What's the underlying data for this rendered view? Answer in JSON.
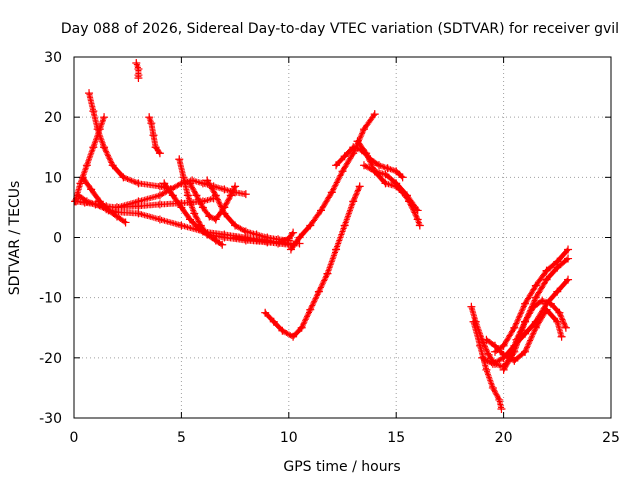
{
  "chart_data": {
    "type": "scatter",
    "title": "Day 088 of 2026, Sidereal Day-to-day VTEC variation (SDTVAR) for receiver gvil",
    "xlabel": "GPS time / hours",
    "ylabel": "SDTVAR / TECUs",
    "xlim": [
      0,
      25
    ],
    "ylim": [
      -30,
      30
    ],
    "xticks": [
      0,
      5,
      10,
      15,
      20,
      25
    ],
    "yticks": [
      -30,
      -20,
      -10,
      0,
      10,
      20,
      30
    ],
    "grid": true,
    "marker": "+",
    "color": "#ff0000",
    "series": [
      {
        "points": [
          [
            0.05,
            6
          ],
          [
            0.3,
            9
          ],
          [
            0.6,
            12
          ],
          [
            0.9,
            15
          ],
          [
            1.2,
            18
          ],
          [
            1.4,
            20
          ]
        ]
      },
      {
        "points": [
          [
            0.7,
            24
          ],
          [
            0.9,
            21
          ],
          [
            1.1,
            18
          ],
          [
            1.4,
            15
          ],
          [
            1.8,
            12
          ],
          [
            2.3,
            10
          ],
          [
            3,
            9
          ],
          [
            4,
            8.5
          ],
          [
            4.5,
            8
          ]
        ]
      },
      {
        "points": [
          [
            2.9,
            29
          ],
          [
            3.0,
            28
          ],
          [
            3.0,
            27
          ],
          [
            3.0,
            26.5
          ]
        ]
      },
      {
        "points": [
          [
            3.5,
            20
          ],
          [
            3.6,
            19
          ],
          [
            3.7,
            17
          ],
          [
            3.8,
            15
          ],
          [
            4.0,
            14
          ]
        ]
      },
      {
        "points": [
          [
            0.1,
            6
          ],
          [
            0.5,
            5.8
          ],
          [
            1,
            5.5
          ],
          [
            1.5,
            5.2
          ],
          [
            2,
            5
          ],
          [
            3,
            5.2
          ],
          [
            4,
            5.5
          ],
          [
            5,
            5.7
          ],
          [
            6,
            6
          ],
          [
            6.5,
            6.5
          ]
        ]
      },
      {
        "points": [
          [
            0.2,
            7
          ],
          [
            0.6,
            6
          ],
          [
            1.0,
            5.5
          ],
          [
            1.5,
            4.7
          ],
          [
            2.0,
            4.2
          ],
          [
            3,
            4
          ],
          [
            4,
            3
          ],
          [
            5,
            2
          ],
          [
            6,
            1
          ],
          [
            7,
            0.5
          ],
          [
            8,
            0
          ],
          [
            9,
            -0.5
          ],
          [
            10,
            -1
          ],
          [
            10.5,
            -1
          ]
        ]
      },
      {
        "points": [
          [
            0.4,
            10
          ],
          [
            0.8,
            8
          ],
          [
            1.2,
            6
          ],
          [
            1.6,
            4.5
          ],
          [
            2.0,
            3.5
          ],
          [
            2.4,
            2.5
          ]
        ]
      },
      {
        "points": [
          [
            2,
            5
          ],
          [
            3,
            6
          ],
          [
            4,
            7
          ],
          [
            4.5,
            8
          ],
          [
            5,
            9
          ],
          [
            5.5,
            9.5
          ],
          [
            6,
            9
          ],
          [
            6.5,
            8.5
          ],
          [
            7,
            8
          ],
          [
            7.5,
            7.5
          ],
          [
            8,
            7.2
          ]
        ]
      },
      {
        "points": [
          [
            4.9,
            13
          ],
          [
            5.1,
            10
          ],
          [
            5.3,
            7
          ],
          [
            5.6,
            4
          ],
          [
            5.9,
            2
          ],
          [
            6.2,
            0.5
          ],
          [
            6.6,
            -0.5
          ],
          [
            6.9,
            -1.2
          ]
        ]
      },
      {
        "points": [
          [
            4.2,
            9
          ],
          [
            4.6,
            7
          ],
          [
            5.0,
            5
          ],
          [
            5.4,
            3
          ],
          [
            5.8,
            1.5
          ],
          [
            6.2,
            0.5
          ],
          [
            7,
            0
          ],
          [
            8,
            -0.5
          ],
          [
            9,
            -0.8
          ],
          [
            9.5,
            -1
          ],
          [
            10,
            -1.2
          ]
        ]
      },
      {
        "points": [
          [
            5.4,
            9
          ],
          [
            5.7,
            7
          ],
          [
            6.0,
            5
          ],
          [
            6.3,
            3.5
          ],
          [
            6.6,
            3
          ],
          [
            7,
            5
          ],
          [
            7.3,
            7
          ],
          [
            7.5,
            8.5
          ]
        ]
      },
      {
        "points": [
          [
            6.2,
            9.5
          ],
          [
            6.6,
            7
          ],
          [
            7,
            4
          ],
          [
            7.5,
            2
          ],
          [
            8,
            1
          ],
          [
            8.5,
            0.5
          ],
          [
            9,
            0
          ],
          [
            9.5,
            -0.3
          ],
          [
            10,
            -0.5
          ]
        ]
      },
      {
        "points": [
          [
            7.5,
            0
          ],
          [
            8,
            -0.2
          ],
          [
            8.5,
            -0.5
          ],
          [
            9,
            -0.7
          ],
          [
            9.5,
            -0.8
          ],
          [
            10,
            -0.2
          ],
          [
            10.2,
            0.8
          ]
        ]
      },
      {
        "points": [
          [
            10.1,
            -2
          ],
          [
            10.5,
            0
          ],
          [
            11,
            2
          ],
          [
            11.5,
            4.5
          ],
          [
            12,
            7.5
          ],
          [
            12.5,
            11
          ],
          [
            13,
            14
          ],
          [
            13.5,
            18
          ],
          [
            14,
            20.5
          ]
        ]
      },
      {
        "points": [
          [
            8.9,
            -12.5
          ],
          [
            9.3,
            -14
          ],
          [
            9.7,
            -15.5
          ],
          [
            10.2,
            -16.5
          ],
          [
            10.6,
            -15
          ],
          [
            11,
            -12
          ],
          [
            11.4,
            -9
          ],
          [
            11.8,
            -6
          ],
          [
            12.2,
            -2
          ],
          [
            12.6,
            2
          ],
          [
            13,
            6
          ],
          [
            13.3,
            8.5
          ]
        ]
      },
      {
        "points": [
          [
            12.2,
            12
          ],
          [
            12.6,
            13.5
          ],
          [
            13,
            15
          ],
          [
            13.4,
            14.5
          ],
          [
            13.8,
            13
          ],
          [
            14.2,
            12
          ],
          [
            14.6,
            11.5
          ],
          [
            15,
            11
          ],
          [
            15.3,
            10
          ]
        ]
      },
      {
        "points": [
          [
            13.2,
            16
          ],
          [
            13.6,
            14
          ],
          [
            14,
            11
          ],
          [
            14.5,
            9
          ],
          [
            15,
            8.5
          ],
          [
            15.3,
            7.5
          ],
          [
            15.6,
            6
          ],
          [
            16,
            3
          ],
          [
            16.1,
            2
          ]
        ]
      },
      {
        "points": [
          [
            13.5,
            12
          ],
          [
            14,
            11
          ],
          [
            14.5,
            10.5
          ],
          [
            15,
            9
          ],
          [
            15.5,
            7
          ],
          [
            16,
            4.5
          ]
        ]
      },
      {
        "points": [
          [
            18.5,
            -11.5
          ],
          [
            18.7,
            -14
          ],
          [
            19,
            -17
          ],
          [
            19.3,
            -19.5
          ],
          [
            19.6,
            -21
          ],
          [
            20,
            -21.5
          ],
          [
            20.3,
            -20
          ],
          [
            20.6,
            -17
          ],
          [
            21,
            -14
          ],
          [
            21.4,
            -11.5
          ],
          [
            21.8,
            -10.5
          ],
          [
            22.2,
            -11
          ],
          [
            22.6,
            -12.5
          ],
          [
            22.9,
            -15
          ]
        ]
      },
      {
        "points": [
          [
            18.6,
            -14
          ],
          [
            18.9,
            -18
          ],
          [
            19.2,
            -22
          ],
          [
            19.5,
            -25
          ],
          [
            19.8,
            -27
          ],
          [
            19.9,
            -28.5
          ]
        ]
      },
      {
        "points": [
          [
            19.0,
            -20
          ],
          [
            19.5,
            -21
          ],
          [
            20,
            -20
          ],
          [
            20.5,
            -18
          ],
          [
            21,
            -16
          ],
          [
            21.5,
            -14
          ],
          [
            22,
            -11
          ],
          [
            22.5,
            -9
          ],
          [
            23,
            -7
          ]
        ]
      },
      {
        "points": [
          [
            19.6,
            -19
          ],
          [
            20,
            -18
          ],
          [
            20.5,
            -15
          ],
          [
            21,
            -11
          ],
          [
            21.5,
            -8
          ],
          [
            22,
            -5.5
          ],
          [
            22.5,
            -4
          ],
          [
            23,
            -2
          ]
        ]
      },
      {
        "points": [
          [
            20,
            -22
          ],
          [
            20.5,
            -19
          ],
          [
            21,
            -14
          ],
          [
            21.5,
            -10
          ],
          [
            22,
            -7
          ],
          [
            22.5,
            -5
          ],
          [
            23,
            -3.5
          ]
        ]
      },
      {
        "points": [
          [
            19.2,
            -17
          ],
          [
            19.6,
            -18
          ],
          [
            20,
            -19.5
          ],
          [
            20.5,
            -20.5
          ],
          [
            21,
            -19
          ],
          [
            21.5,
            -15
          ],
          [
            22,
            -12
          ],
          [
            22.5,
            -14
          ],
          [
            22.7,
            -16.5
          ]
        ]
      }
    ]
  }
}
